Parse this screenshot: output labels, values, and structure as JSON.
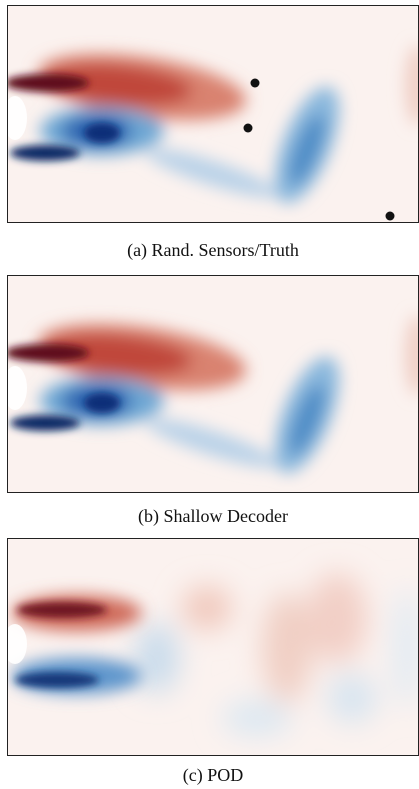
{
  "figure": {
    "panels": [
      {
        "caption": "(a) Rand. Sensors/Truth"
      },
      {
        "caption": "(b) Shallow Decoder"
      },
      {
        "caption": "(c) POD"
      }
    ]
  }
}
